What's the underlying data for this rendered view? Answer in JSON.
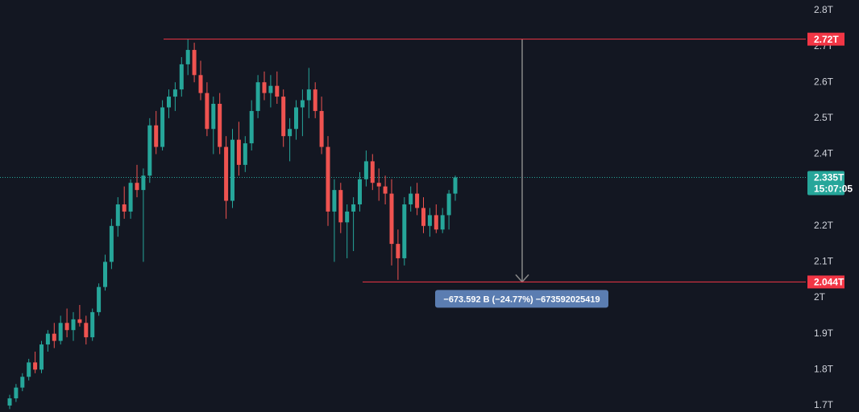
{
  "chart_data": {
    "type": "candlestick",
    "up_color": "#26a69a",
    "down_color": "#ef5350",
    "ylim": [
      1.682,
      2.829
    ],
    "yticks": [
      {
        "value": 1.7,
        "label": "1.7T"
      },
      {
        "value": 1.8,
        "label": "1.8T"
      },
      {
        "value": 1.9,
        "label": "1.9T"
      },
      {
        "value": 2,
        "label": "2T"
      },
      {
        "value": 2.1,
        "label": "2.1T"
      },
      {
        "value": 2.2,
        "label": "2.2T"
      },
      {
        "value": 2.3,
        "label": "2.3T"
      },
      {
        "value": 2.4,
        "label": "2.4T"
      },
      {
        "value": 2.5,
        "label": "2.5T"
      },
      {
        "value": 2.6,
        "label": "2.6T"
      },
      {
        "value": 2.7,
        "label": "2.7T"
      },
      {
        "value": 2.8,
        "label": "2.8T"
      }
    ],
    "series": [
      {
        "open": [
          1.7,
          1.72,
          1.75,
          1.78,
          1.82,
          1.8,
          1.87,
          1.9,
          1.88,
          1.93,
          1.91,
          1.94,
          1.93,
          1.89,
          1.96,
          2.03,
          2.1,
          2.2,
          2.26,
          2.24,
          2.32,
          2.3,
          2.34,
          2.48,
          2.42,
          2.53,
          2.56,
          2.58,
          2.65,
          2.69,
          2.62,
          2.57,
          2.47,
          2.54,
          2.42,
          2.27,
          2.44,
          2.37,
          2.43,
          2.52,
          2.6,
          2.57,
          2.59,
          2.56,
          2.45,
          2.47,
          2.53,
          2.55,
          2.58,
          2.52,
          2.42,
          2.24,
          2.3,
          2.21,
          2.24,
          2.26,
          2.33,
          2.38,
          2.32,
          2.31,
          2.29,
          2.15,
          2.11,
          2.26,
          2.29,
          2.25,
          2.2,
          2.23,
          2.19,
          2.23,
          2.29
        ],
        "high": [
          1.73,
          1.76,
          1.79,
          1.83,
          1.85,
          1.88,
          1.91,
          1.93,
          1.95,
          1.97,
          1.96,
          1.98,
          1.95,
          1.97,
          2.04,
          2.12,
          2.22,
          2.28,
          2.31,
          2.33,
          2.37,
          2.36,
          2.5,
          2.52,
          2.55,
          2.58,
          2.6,
          2.67,
          2.72,
          2.71,
          2.66,
          2.6,
          2.56,
          2.57,
          2.45,
          2.47,
          2.49,
          2.45,
          2.55,
          2.62,
          2.63,
          2.62,
          2.63,
          2.58,
          2.5,
          2.55,
          2.58,
          2.64,
          2.6,
          2.56,
          2.45,
          2.33,
          2.32,
          2.26,
          2.28,
          2.35,
          2.41,
          2.4,
          2.36,
          2.34,
          2.33,
          2.19,
          2.28,
          2.31,
          2.32,
          2.28,
          2.25,
          2.26,
          2.25,
          2.3,
          2.34
        ],
        "low": [
          1.69,
          1.71,
          1.74,
          1.77,
          1.79,
          1.79,
          1.85,
          1.86,
          1.87,
          1.89,
          1.88,
          1.92,
          1.87,
          1.88,
          1.95,
          2.02,
          2.08,
          2.17,
          2.22,
          2.22,
          2.28,
          2.1,
          2.32,
          2.4,
          2.41,
          2.5,
          2.52,
          2.56,
          2.62,
          2.6,
          2.55,
          2.45,
          2.4,
          2.4,
          2.22,
          2.25,
          2.34,
          2.35,
          2.41,
          2.5,
          2.55,
          2.53,
          2.54,
          2.42,
          2.38,
          2.44,
          2.45,
          2.5,
          2.5,
          2.4,
          2.2,
          2.1,
          2.18,
          2.11,
          2.13,
          2.24,
          2.31,
          2.3,
          2.27,
          2.26,
          2.09,
          2.05,
          2.09,
          2.24,
          2.23,
          2.18,
          2.17,
          2.18,
          2.18,
          2.19,
          2.27
        ],
        "close": [
          1.72,
          1.75,
          1.78,
          1.82,
          1.8,
          1.87,
          1.9,
          1.88,
          1.93,
          1.91,
          1.94,
          1.93,
          1.89,
          1.96,
          2.03,
          2.1,
          2.2,
          2.26,
          2.24,
          2.32,
          2.3,
          2.34,
          2.48,
          2.42,
          2.53,
          2.56,
          2.58,
          2.65,
          2.69,
          2.62,
          2.57,
          2.47,
          2.54,
          2.42,
          2.27,
          2.44,
          2.37,
          2.43,
          2.52,
          2.6,
          2.57,
          2.59,
          2.56,
          2.45,
          2.47,
          2.53,
          2.55,
          2.58,
          2.52,
          2.42,
          2.24,
          2.3,
          2.21,
          2.24,
          2.26,
          2.33,
          2.38,
          2.32,
          2.31,
          2.29,
          2.15,
          2.11,
          2.26,
          2.29,
          2.25,
          2.2,
          2.23,
          2.19,
          2.23,
          2.29,
          2.335
        ]
      }
    ],
    "price_lines": [
      {
        "value": 2.72,
        "label": "2.72T",
        "color": "#f23645"
      },
      {
        "value": 2.044,
        "label": "2.044T",
        "color": "#f23645"
      }
    ],
    "last_price": {
      "value": 2.335,
      "label": "2.335T",
      "countdown": "15:07:05",
      "color": "#26a69a"
    },
    "measure": {
      "label": "−673.592 B (−24.77%) −673592025419",
      "color": "#5b7db1"
    }
  }
}
